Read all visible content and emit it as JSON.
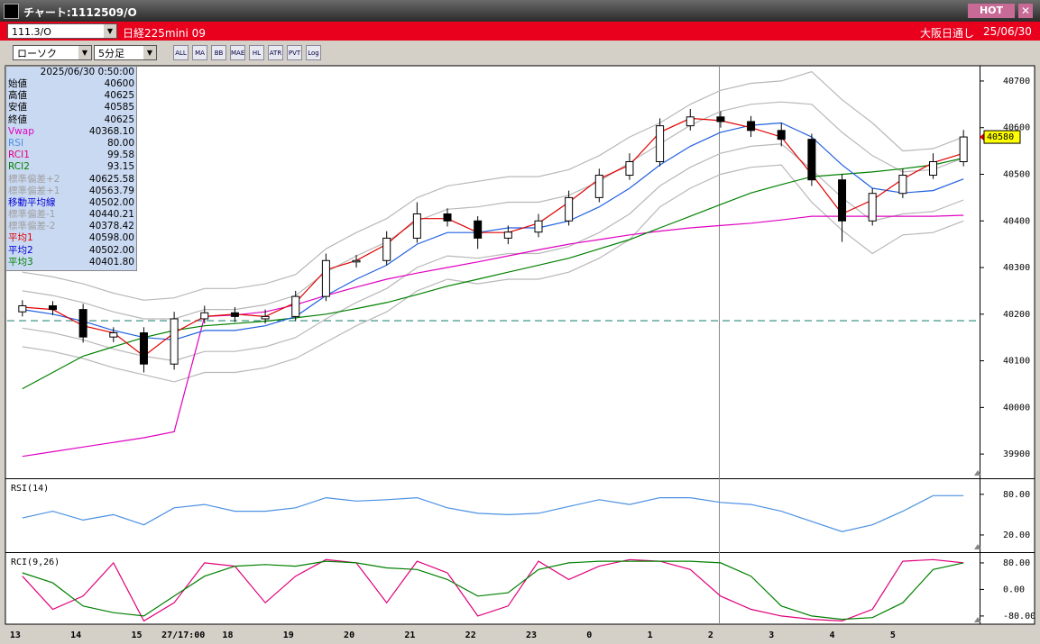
{
  "window": {
    "title": "チャート:1112509/O",
    "hot": "HOT"
  },
  "toolbar": {
    "symbol": "111.3/O",
    "name": "日経225mini 09",
    "exchange": "大阪日通し",
    "date": "25/06/30",
    "chart_style": "ローソク",
    "interval": "5分足",
    "icon_labels": [
      "ALL",
      "MA",
      "BB",
      "MAE",
      "HL",
      "ATR",
      "PVT",
      "Log"
    ]
  },
  "info_panel": {
    "timestamp": "2025/06/30  0:50:00",
    "rows": [
      {
        "label": "始値",
        "value": "40600",
        "color": "#000000"
      },
      {
        "label": "高値",
        "value": "40625",
        "color": "#000000"
      },
      {
        "label": "安値",
        "value": "40585",
        "color": "#000000"
      },
      {
        "label": "終値",
        "value": "40625",
        "color": "#000000"
      },
      {
        "label": "Vwap",
        "value": "40368.10",
        "color": "#e000c0"
      },
      {
        "label": "RSI",
        "value": "80.00",
        "color": "#4a90e2"
      },
      {
        "label": "RCI1",
        "value": "99.58",
        "color": "#e0007a"
      },
      {
        "label": "RCI2",
        "value": "93.15",
        "color": "#008000"
      },
      {
        "label": "標準偏差+2",
        "value": "40625.58",
        "color": "#a0a0a0"
      },
      {
        "label": "標準偏差+1",
        "value": "40563.79",
        "color": "#a0a0a0"
      },
      {
        "label": "移動平均線",
        "value": "40502.00",
        "color": "#0000d0"
      },
      {
        "label": "標準偏差-1",
        "value": "40440.21",
        "color": "#a0a0a0"
      },
      {
        "label": "標準偏差-2",
        "value": "40378.42",
        "color": "#a0a0a0"
      },
      {
        "label": "平均1",
        "value": "40598.00",
        "color": "#e00000"
      },
      {
        "label": "平均2",
        "value": "40502.00",
        "color": "#0000d0"
      },
      {
        "label": "平均3",
        "value": "40401.80",
        "color": "#008000"
      }
    ]
  },
  "chart_data": [
    {
      "type": "candlestick",
      "up_color": "#ffffff",
      "down_color": "#000000",
      "categories": [
        "13",
        null,
        "14",
        null,
        "15",
        "27/17:00",
        null,
        "18",
        null,
        "19",
        null,
        "20",
        null,
        "21",
        null,
        "22",
        null,
        "23",
        null,
        "0",
        null,
        "1",
        null,
        "2",
        null,
        "3",
        null,
        "4",
        null,
        "5",
        null,
        null
      ],
      "ohlc": [
        [
          40205,
          40230,
          40195,
          40218
        ],
        [
          40218,
          40228,
          40198,
          40210
        ],
        [
          40210,
          40222,
          40139,
          40151
        ],
        [
          40151,
          40172,
          40140,
          40160
        ],
        [
          40160,
          40172,
          40075,
          40093
        ],
        [
          40093,
          40205,
          40081,
          40190
        ],
        [
          40190,
          40218,
          40180,
          40203
        ],
        [
          40203,
          40215,
          40183,
          40195
        ],
        [
          40190,
          40210,
          40180,
          40195
        ],
        [
          40195,
          40250,
          40185,
          40238
        ],
        [
          40238,
          40330,
          40228,
          40315
        ],
        [
          40312,
          40327,
          40300,
          40315
        ],
        [
          40315,
          40378,
          40305,
          40363
        ],
        [
          40363,
          40440,
          40353,
          40415
        ],
        [
          40415,
          40427,
          40388,
          40400
        ],
        [
          40400,
          40410,
          40340,
          40363
        ],
        [
          40363,
          40390,
          40350,
          40376
        ],
        [
          40376,
          40415,
          40365,
          40400
        ],
        [
          40400,
          40465,
          40390,
          40450
        ],
        [
          40450,
          40512,
          40440,
          40498
        ],
        [
          40498,
          40545,
          40488,
          40527
        ],
        [
          40527,
          40620,
          40517,
          40604
        ],
        [
          40604,
          40640,
          40594,
          40623
        ],
        [
          40623,
          40635,
          40600,
          40613
        ],
        [
          40613,
          40625,
          40580,
          40594
        ],
        [
          40594,
          40610,
          40560,
          40575
        ],
        [
          40575,
          40587,
          40475,
          40488
        ],
        [
          40488,
          40500,
          40355,
          40400
        ],
        [
          40400,
          40470,
          40390,
          40459
        ],
        [
          40459,
          40512,
          40449,
          40498
        ],
        [
          40498,
          40545,
          40490,
          40527
        ],
        [
          40527,
          40595,
          40517,
          40580
        ]
      ],
      "series": [
        {
          "color": "#b8b8b8",
          "values": [
            40290,
            40280,
            40265,
            40245,
            40230,
            40235,
            40255,
            40255,
            40265,
            40285,
            40340,
            40375,
            40405,
            40450,
            40475,
            40485,
            40495,
            40495,
            40510,
            40540,
            40580,
            40610,
            40650,
            40680,
            40695,
            40700,
            40720,
            40660,
            40610,
            40550,
            40555,
            40580
          ]
        },
        {
          "color": "#b8b8b8",
          "values": [
            40250,
            40240,
            40225,
            40205,
            40190,
            40190,
            40210,
            40210,
            40220,
            40240,
            40290,
            40325,
            40355,
            40400,
            40425,
            40430,
            40440,
            40440,
            40455,
            40485,
            40525,
            40565,
            40605,
            40635,
            40650,
            40655,
            40650,
            40590,
            40540,
            40505,
            40510,
            40535
          ]
        },
        {
          "color": "#b8b8b8",
          "values": [
            40170,
            40160,
            40145,
            40125,
            40110,
            40100,
            40120,
            40120,
            40130,
            40150,
            40190,
            40225,
            40255,
            40300,
            40325,
            40320,
            40330,
            40330,
            40345,
            40375,
            40415,
            40475,
            40515,
            40545,
            40560,
            40565,
            40510,
            40450,
            40400,
            40415,
            40420,
            40445
          ]
        },
        {
          "color": "#b8b8b8",
          "values": [
            40130,
            40120,
            40105,
            40085,
            40070,
            40055,
            40075,
            40075,
            40085,
            40105,
            40140,
            40175,
            40205,
            40250,
            40275,
            40265,
            40275,
            40275,
            40290,
            40320,
            40360,
            40430,
            40470,
            40500,
            40515,
            40520,
            40440,
            40380,
            40330,
            40370,
            40375,
            40400
          ]
        },
        {
          "color": "#e000c0",
          "values": [
            39895,
            39905,
            39915,
            39925,
            39935,
            39948,
            40195,
            40198,
            40205,
            40220,
            40240,
            40258,
            40275,
            40288,
            40300,
            40312,
            40325,
            40338,
            40350,
            40360,
            40370,
            40378,
            40385,
            40390,
            40395,
            40402,
            40410,
            40410,
            40410,
            40410,
            40410,
            40412
          ]
        },
        {
          "color": "#008000",
          "values": [
            40040,
            40075,
            40110,
            40130,
            40150,
            40165,
            40175,
            40180,
            40185,
            40192,
            40200,
            40212,
            40225,
            40242,
            40260,
            40275,
            40290,
            40305,
            40320,
            40340,
            40360,
            40385,
            40410,
            40435,
            40460,
            40478,
            40495,
            40500,
            40505,
            40512,
            40520,
            40535
          ]
        },
        {
          "color": "#2060e0",
          "values": [
            40210,
            40200,
            40185,
            40165,
            40150,
            40145,
            40165,
            40165,
            40175,
            40195,
            40240,
            40275,
            40305,
            40350,
            40375,
            40375,
            40385,
            40385,
            40400,
            40430,
            40470,
            40520,
            40560,
            40590,
            40605,
            40610,
            40580,
            40520,
            40470,
            40460,
            40465,
            40490
          ]
        },
        {
          "color": "#e00000",
          "values": [
            40215,
            40210,
            40175,
            40160,
            40110,
            40160,
            40195,
            40200,
            40195,
            40225,
            40295,
            40315,
            40350,
            40405,
            40405,
            40375,
            40375,
            40395,
            40440,
            40490,
            40520,
            40590,
            40620,
            40615,
            40600,
            40580,
            40500,
            40415,
            40445,
            40490,
            40525,
            40545
          ]
        }
      ],
      "reference_line": {
        "value": 40186,
        "color": "#2a8a7a"
      },
      "last_price": 40580,
      "ylim": [
        39850,
        40725
      ],
      "yticks": [
        39900,
        40000,
        40100,
        40200,
        40300,
        40400,
        40500,
        40600,
        40700
      ],
      "grid": false
    },
    {
      "type": "line",
      "title": "RSI(14)",
      "series": [
        {
          "color": "#4a90e2",
          "values": [
            45,
            55,
            42,
            50,
            35,
            60,
            65,
            55,
            55,
            60,
            75,
            70,
            72,
            75,
            60,
            52,
            50,
            52,
            62,
            72,
            65,
            75,
            75,
            68,
            65,
            55,
            40,
            25,
            35,
            55,
            78,
            78
          ]
        }
      ],
      "ylim": [
        -4,
        101
      ],
      "yticks": [
        {
          "value": 80,
          "label": "80.00"
        },
        {
          "value": 20,
          "label": "20.00"
        }
      ],
      "grid": false
    },
    {
      "type": "line",
      "title": "RCI(9,26)",
      "series": [
        {
          "color": "#e0007a",
          "values": [
            40,
            -60,
            -20,
            80,
            -95,
            -40,
            80,
            70,
            -40,
            40,
            90,
            80,
            -40,
            85,
            50,
            -80,
            -50,
            85,
            30,
            70,
            90,
            85,
            60,
            -20,
            -60,
            -80,
            -90,
            -95,
            -60,
            85,
            90,
            80
          ]
        },
        {
          "color": "#008000",
          "values": [
            50,
            20,
            -50,
            -70,
            -80,
            -20,
            40,
            70,
            75,
            70,
            85,
            80,
            65,
            60,
            30,
            -20,
            -10,
            60,
            80,
            85,
            85,
            85,
            85,
            80,
            40,
            -50,
            -80,
            -90,
            -85,
            -40,
            60,
            80
          ]
        }
      ],
      "ylim": [
        -102,
        107
      ],
      "yticks": [
        {
          "value": 80,
          "label": "80.00"
        },
        {
          "value": 0,
          "label": "0.00"
        },
        {
          "value": -80,
          "label": "-80.00"
        }
      ],
      "grid": false
    }
  ]
}
